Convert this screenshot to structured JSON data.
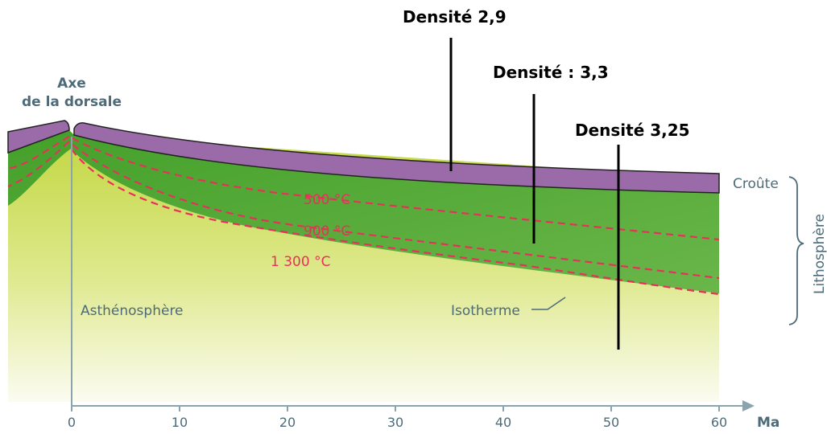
{
  "title": {
    "axis_ridge_line1": "Axe",
    "axis_ridge_line2": "de la dorsale"
  },
  "layers": {
    "crust": "Croûte",
    "lithosphere": "Lithosphère",
    "asthenosphere": "Asthénosphère",
    "isotherm": "Isotherme"
  },
  "isotherms": [
    "500 °C",
    "900 °C",
    "1 300 °C"
  ],
  "densities": [
    "Densité 2,9",
    "Densité : 3,3",
    "Densité 3,25"
  ],
  "x_axis": {
    "unit": "Ma",
    "ticks": [
      "0",
      "10",
      "20",
      "30",
      "40",
      "50",
      "60"
    ]
  },
  "colors": {
    "crust": "#9b6aa8",
    "lithosphere": "#4fa82e",
    "asthenosphere": "#c5d94a",
    "isotherm": "#e8315a",
    "axis": "#8aa3ad",
    "text": "#4d6b78"
  }
}
